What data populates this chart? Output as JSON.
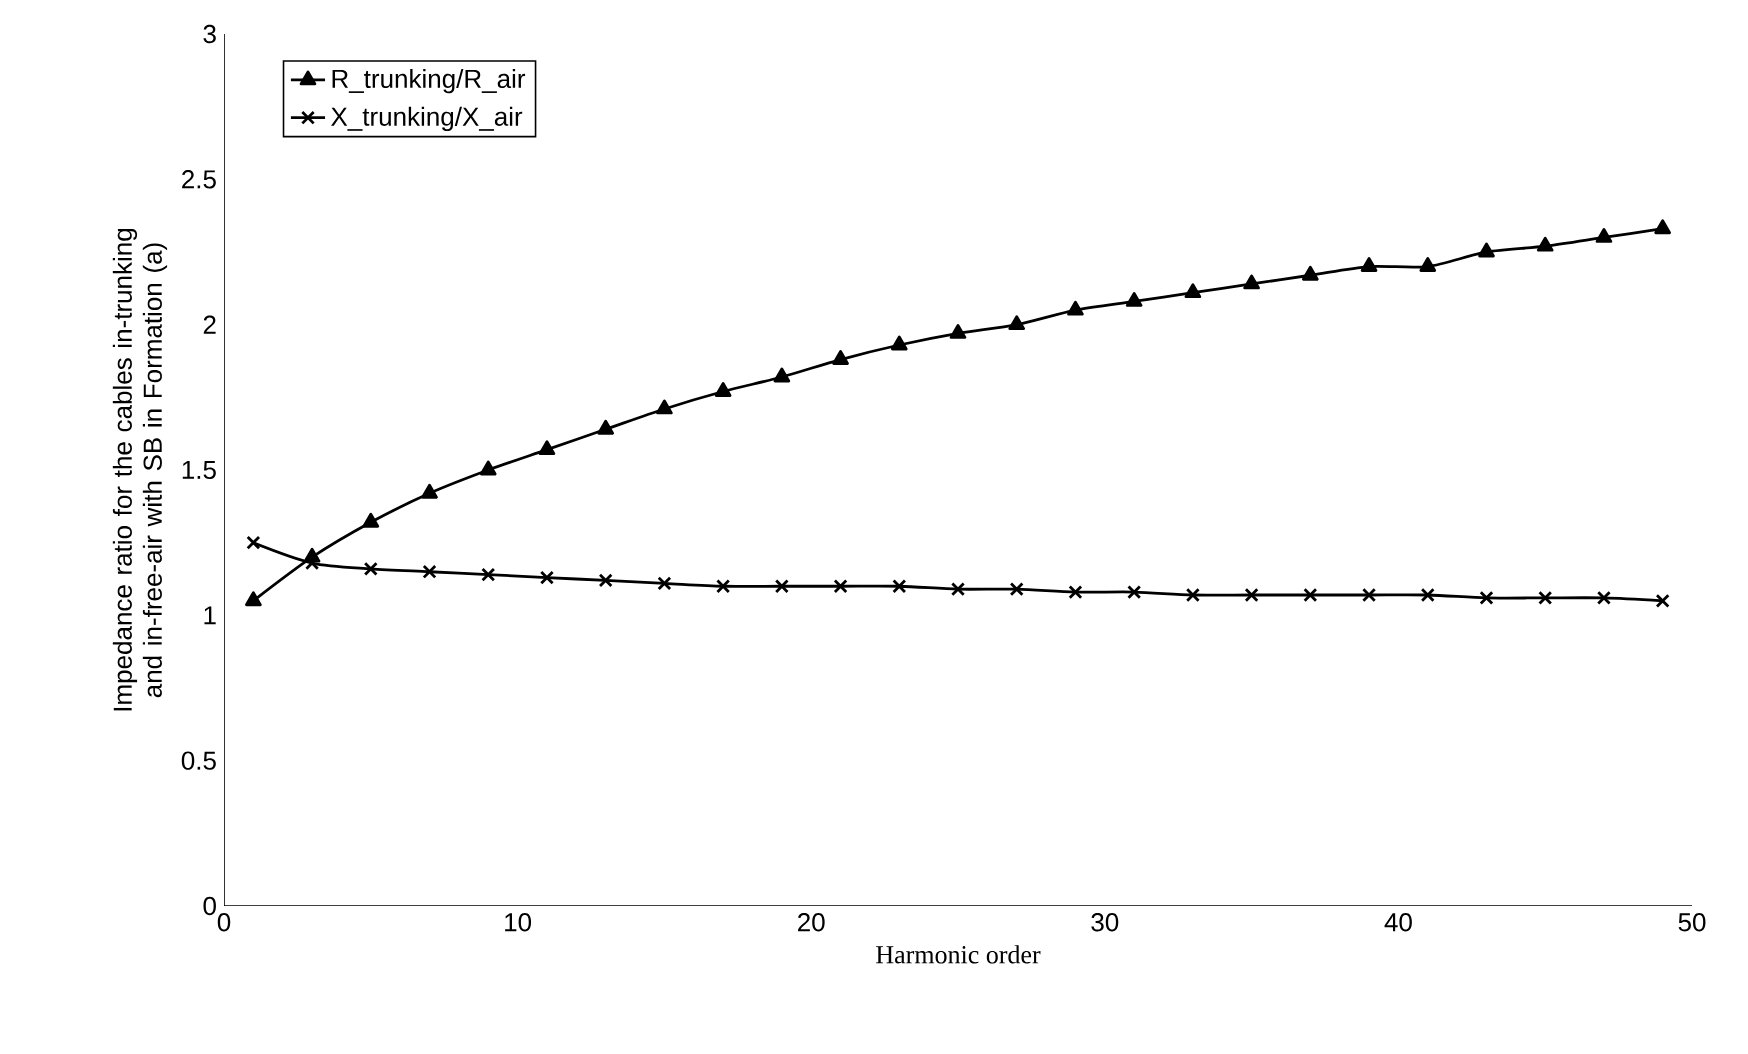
{
  "chart_data": {
    "type": "line",
    "xlabel": "Harmonic order",
    "ylabel": "Impedance ratio for the cables in-trunking and in-free-air with SB in Formation (a)",
    "x": [
      1,
      3,
      5,
      7,
      9,
      11,
      13,
      15,
      17,
      19,
      21,
      23,
      25,
      27,
      29,
      31,
      33,
      35,
      37,
      39,
      41,
      43,
      45,
      47,
      49
    ],
    "series": [
      {
        "name": "R_trunking/R_air",
        "color": "#000000",
        "marker": "triangle",
        "values": [
          1.05,
          1.2,
          1.32,
          1.42,
          1.5,
          1.57,
          1.64,
          1.71,
          1.77,
          1.82,
          1.88,
          1.93,
          1.97,
          2.0,
          2.05,
          2.08,
          2.11,
          2.14,
          2.17,
          2.2,
          2.2,
          2.25,
          2.27,
          2.3,
          2.33
        ]
      },
      {
        "name": "X_trunking/X_air",
        "color": "#000000",
        "marker": "cross",
        "values": [
          1.25,
          1.18,
          1.16,
          1.15,
          1.14,
          1.13,
          1.12,
          1.11,
          1.1,
          1.1,
          1.1,
          1.1,
          1.09,
          1.09,
          1.08,
          1.08,
          1.07,
          1.07,
          1.07,
          1.07,
          1.07,
          1.06,
          1.06,
          1.06,
          1.05
        ]
      }
    ],
    "xlim": [
      0,
      50
    ],
    "xticks": [
      0,
      10,
      20,
      30,
      40,
      50
    ],
    "ylim": [
      0,
      3
    ],
    "yticks": [
      0,
      0.5,
      1,
      1.5,
      2,
      2.5,
      3
    ],
    "legend": "top left",
    "grid": false,
    "line_style": "solid"
  }
}
